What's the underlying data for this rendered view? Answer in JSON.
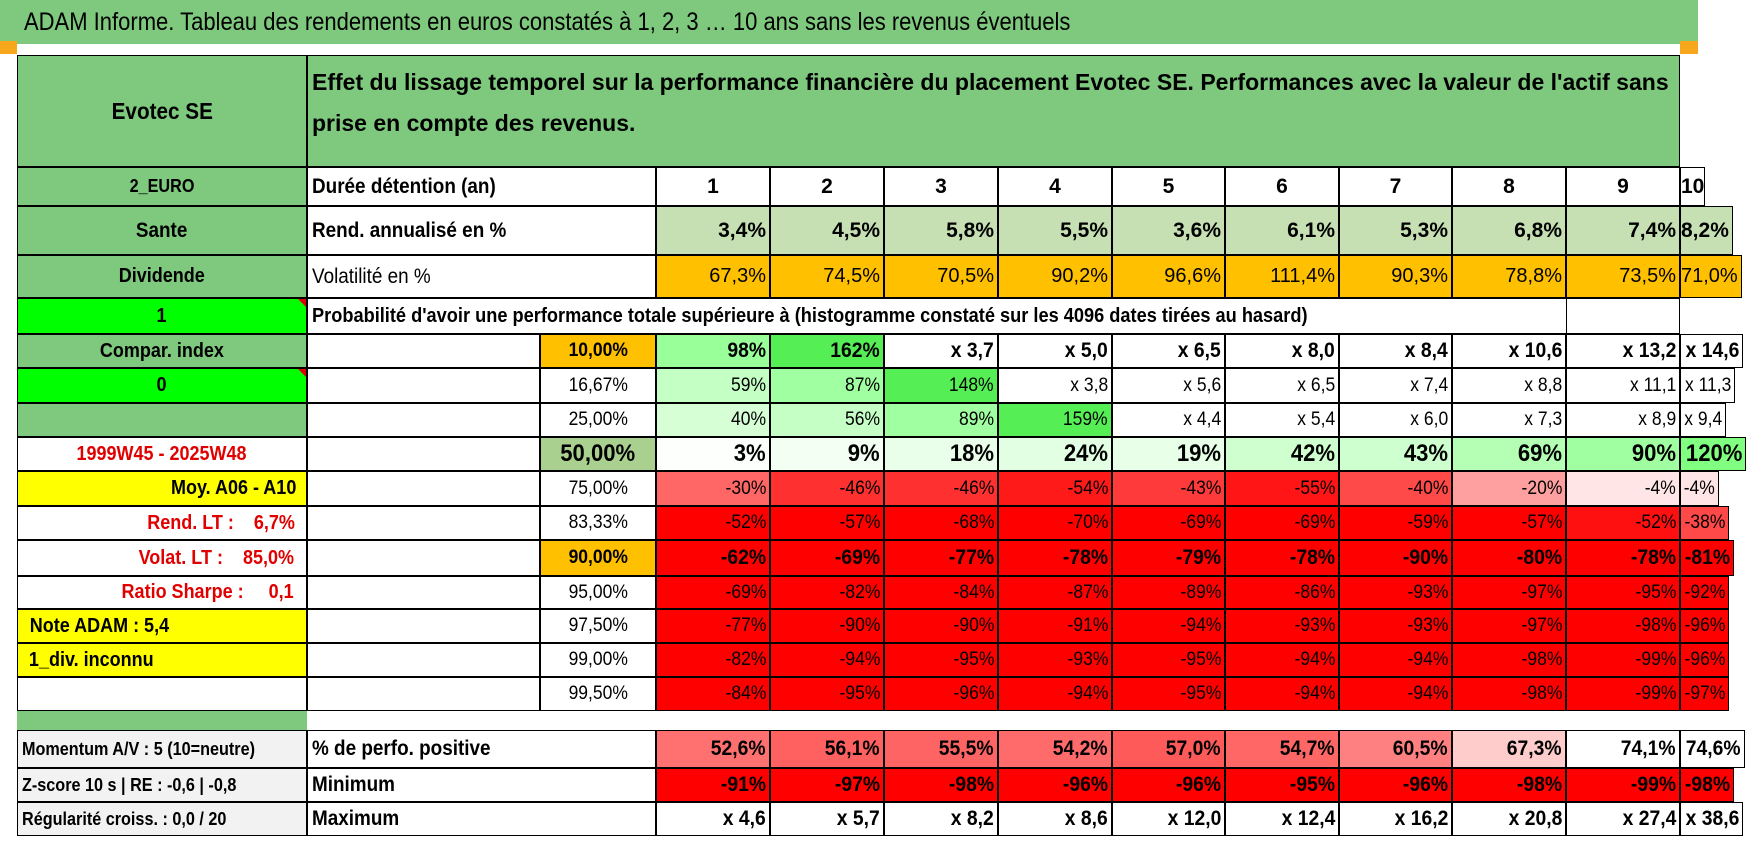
{
  "title": "ADAM Informe. Tableau des rendements en euros constatés à 1, 2, 3 … 10 ans sans les revenus éventuels",
  "colors": {
    "header_green": "#7ec97e",
    "light_green_rend": "#c6e0b4",
    "orange": "#ffc000",
    "bright_green": "#00ff00",
    "yellow": "#ffff00",
    "red": "#ff0000",
    "red_text": "#e00000",
    "grey_row": "#f2f2f2",
    "pct50_cell": "#a9d08e"
  },
  "left_column": {
    "asset_name": "Evotec SE",
    "currency": "2_EURO",
    "sector": "Sante",
    "dividend_label": "Dividende",
    "flag_one": "1",
    "compar_index": "Compar. index",
    "flag_zero": "0",
    "empty_green": "",
    "period": "1999W45 - 2025W48",
    "moy": "Moy. A06 - A10",
    "rend_lt": "Rend. LT :    6,7%",
    "volat_lt": "Volat. LT :    85,0%",
    "ratio_sharpe": "Ratio Sharpe :     0,1",
    "note_adam": "Note ADAM : 5,4",
    "div_inconnu": "1_div. inconnu",
    "momentum": "Momentum A/V : 5 (10=neutre)",
    "zscore": "Z-score 10 s | RE : -0,6 | -0,8",
    "regularite": "Régularité croiss. : 0,0 / 20"
  },
  "description": "Effet du lissage temporel sur la performance financière du placement Evotec SE. Performances avec la valeur de l'actif sans prise en compte des revenus.",
  "row_labels": {
    "duration": "Durée détention (an)",
    "rend": "Rend. annualisé en %",
    "volat": "Volatilité en %",
    "probability": "Probabilité d'avoir une performance totale supérieure à (histogramme constaté sur les 4096 dates tirées au hasard)",
    "positive": "% de perfo. positive",
    "minimum": "Minimum",
    "maximum": "Maximum"
  },
  "years": [
    "1",
    "2",
    "3",
    "4",
    "5",
    "6",
    "7",
    "8",
    "9",
    "10"
  ],
  "rend": [
    "3,4%",
    "4,5%",
    "5,8%",
    "5,5%",
    "3,6%",
    "6,1%",
    "5,3%",
    "6,8%",
    "7,4%",
    "8,2%"
  ],
  "volat": [
    "67,3%",
    "74,5%",
    "70,5%",
    "90,2%",
    "96,6%",
    "111,4%",
    "90,3%",
    "78,8%",
    "73,5%",
    "71,0%"
  ],
  "percentile_rows": [
    {
      "pct": "10,00%",
      "values": [
        "98%",
        "162%",
        "x 3,7",
        "x 5,0",
        "x 6,5",
        "x 8,0",
        "x 8,4",
        "x 10,6",
        "x 13,2",
        "x 14,6"
      ],
      "colors": [
        "#99ff99",
        "#55ee55",
        "#ffffff",
        "#ffffff",
        "#ffffff",
        "#ffffff",
        "#ffffff",
        "#ffffff",
        "#ffffff",
        "#ffffff"
      ]
    },
    {
      "pct": "16,67%",
      "values": [
        "59%",
        "87%",
        "148%",
        "x 3,8",
        "x 5,6",
        "x 6,5",
        "x 7,4",
        "x 8,8",
        "x 11,1",
        "x 11,3"
      ],
      "colors": [
        "#c4ffc4",
        "#a0ffa0",
        "#55ee55",
        "#ffffff",
        "#ffffff",
        "#ffffff",
        "#ffffff",
        "#ffffff",
        "#ffffff",
        "#ffffff"
      ]
    },
    {
      "pct": "25,00%",
      "values": [
        "40%",
        "56%",
        "89%",
        "159%",
        "x 4,4",
        "x 5,4",
        "x 6,0",
        "x 7,3",
        "x 8,9",
        "x 9,4"
      ],
      "colors": [
        "#d6ffd6",
        "#c6ffc6",
        "#a0ffa0",
        "#55ee55",
        "#ffffff",
        "#ffffff",
        "#ffffff",
        "#ffffff",
        "#ffffff",
        "#ffffff"
      ]
    },
    {
      "pct": "50,00%",
      "values": [
        "3%",
        "9%",
        "18%",
        "24%",
        "19%",
        "42%",
        "43%",
        "69%",
        "90%",
        "120%"
      ],
      "colors": [
        "#fdfffd",
        "#f2fff2",
        "#eaffea",
        "#e3ffe3",
        "#e8ffe8",
        "#cfffcf",
        "#ceffce",
        "#b4ffb4",
        "#a0ffa0",
        "#80ff80"
      ]
    },
    {
      "pct": "75,00%",
      "values": [
        "-30%",
        "-46%",
        "-46%",
        "-54%",
        "-43%",
        "-55%",
        "-40%",
        "-20%",
        "-4%",
        "-4%"
      ],
      "colors": [
        "#ff6666",
        "#ff3030",
        "#ff3030",
        "#ff1a1a",
        "#ff3a3a",
        "#ff1515",
        "#ff4a4a",
        "#ffa0a0",
        "#ffe5e5",
        "#ffe5e5"
      ]
    },
    {
      "pct": "83,33%",
      "values": [
        "-52%",
        "-57%",
        "-68%",
        "-70%",
        "-69%",
        "-69%",
        "-59%",
        "-57%",
        "-52%",
        "-38%"
      ],
      "colors": [
        "#ff0000",
        "#ff0000",
        "#ff0000",
        "#ff0000",
        "#ff0000",
        "#ff0000",
        "#ff0000",
        "#ff0000",
        "#ff1010",
        "#ff4848"
      ]
    },
    {
      "pct": "90,00%",
      "values": [
        "-62%",
        "-69%",
        "-77%",
        "-78%",
        "-79%",
        "-78%",
        "-90%",
        "-80%",
        "-78%",
        "-81%"
      ],
      "colors": [
        "#ff0000",
        "#ff0000",
        "#ff0000",
        "#ff0000",
        "#ff0000",
        "#ff0000",
        "#ff0000",
        "#ff0000",
        "#ff0000",
        "#ff0000"
      ]
    },
    {
      "pct": "95,00%",
      "values": [
        "-69%",
        "-82%",
        "-84%",
        "-87%",
        "-89%",
        "-86%",
        "-93%",
        "-97%",
        "-95%",
        "-92%"
      ],
      "colors": [
        "#ff0000",
        "#ff0000",
        "#ff0000",
        "#ff0000",
        "#ff0000",
        "#ff0000",
        "#ff0000",
        "#ff0000",
        "#ff0000",
        "#ff0000"
      ]
    },
    {
      "pct": "97,50%",
      "values": [
        "-77%",
        "-90%",
        "-90%",
        "-91%",
        "-94%",
        "-93%",
        "-93%",
        "-97%",
        "-98%",
        "-96%"
      ],
      "colors": [
        "#ff0000",
        "#ff0000",
        "#ff0000",
        "#ff0000",
        "#ff0000",
        "#ff0000",
        "#ff0000",
        "#ff0000",
        "#ff0000",
        "#ff0000"
      ]
    },
    {
      "pct": "99,00%",
      "values": [
        "-82%",
        "-94%",
        "-95%",
        "-93%",
        "-95%",
        "-94%",
        "-94%",
        "-98%",
        "-99%",
        "-96%"
      ],
      "colors": [
        "#ff0000",
        "#ff0000",
        "#ff0000",
        "#ff0000",
        "#ff0000",
        "#ff0000",
        "#ff0000",
        "#ff0000",
        "#ff0000",
        "#ff0000"
      ]
    },
    {
      "pct": "99,50%",
      "values": [
        "-84%",
        "-95%",
        "-96%",
        "-94%",
        "-95%",
        "-94%",
        "-94%",
        "-98%",
        "-99%",
        "-97%"
      ],
      "colors": [
        "#ff0000",
        "#ff0000",
        "#ff0000",
        "#ff0000",
        "#ff0000",
        "#ff0000",
        "#ff0000",
        "#ff0000",
        "#ff0000",
        "#ff0000"
      ]
    }
  ],
  "positive": {
    "values": [
      "52,6%",
      "56,1%",
      "55,5%",
      "54,2%",
      "57,0%",
      "54,7%",
      "60,5%",
      "67,3%",
      "74,1%",
      "74,6%"
    ],
    "colors": [
      "#ff7070",
      "#ff6060",
      "#ff6464",
      "#ff6a6a",
      "#ff5a5a",
      "#ff6666",
      "#ff8080",
      "#ffcccc",
      "#ffffff",
      "#ffffff"
    ]
  },
  "minimum": {
    "values": [
      "-91%",
      "-97%",
      "-98%",
      "-96%",
      "-96%",
      "-95%",
      "-96%",
      "-98%",
      "-99%",
      "-98%"
    ],
    "colors": [
      "#ff0000",
      "#ff0000",
      "#ff0000",
      "#ff0000",
      "#ff0000",
      "#ff0000",
      "#ff0000",
      "#ff0000",
      "#ff0000",
      "#ff0000"
    ]
  },
  "maximum": {
    "values": [
      "x 4,6",
      "x 5,7",
      "x 8,2",
      "x 8,6",
      "x 12,0",
      "x 12,4",
      "x 16,2",
      "x 20,8",
      "x 27,4",
      "x 38,6"
    ]
  }
}
